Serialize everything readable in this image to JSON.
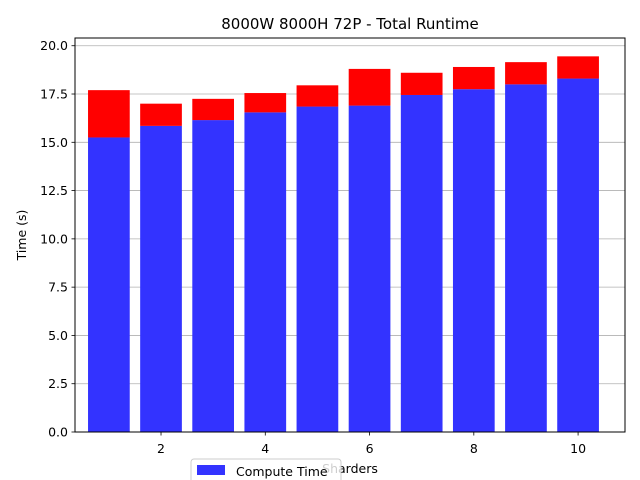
{
  "chart_data": {
    "type": "bar",
    "stacked": true,
    "title": "8000W 8000H 72P - Total Runtime",
    "xlabel": "Sharders",
    "ylabel": "Time (s)",
    "x": [
      1,
      2,
      3,
      4,
      5,
      6,
      7,
      8,
      9,
      10
    ],
    "xticks": [
      2,
      4,
      6,
      8,
      10
    ],
    "xlim": [
      0.35,
      10.9
    ],
    "ylim": [
      0,
      20.4
    ],
    "yticks": [
      0.0,
      2.5,
      5.0,
      7.5,
      10.0,
      12.5,
      15.0,
      17.5,
      20.0
    ],
    "ytick_labels": [
      "0.0",
      "2.5",
      "5.0",
      "7.5",
      "10.0",
      "12.5",
      "15.0",
      "17.5",
      "20.0"
    ],
    "grid": "horizontal",
    "legend_position": "bottom-left",
    "series": [
      {
        "name": "Compute Time",
        "color": "#3333ff",
        "values": [
          15.25,
          15.85,
          16.15,
          16.55,
          16.85,
          16.9,
          17.45,
          17.75,
          18.0,
          18.3
        ]
      },
      {
        "color": "#ff0000",
        "values": [
          2.45,
          1.15,
          1.1,
          1.0,
          1.1,
          1.9,
          1.15,
          1.15,
          1.15,
          1.15
        ]
      }
    ]
  }
}
